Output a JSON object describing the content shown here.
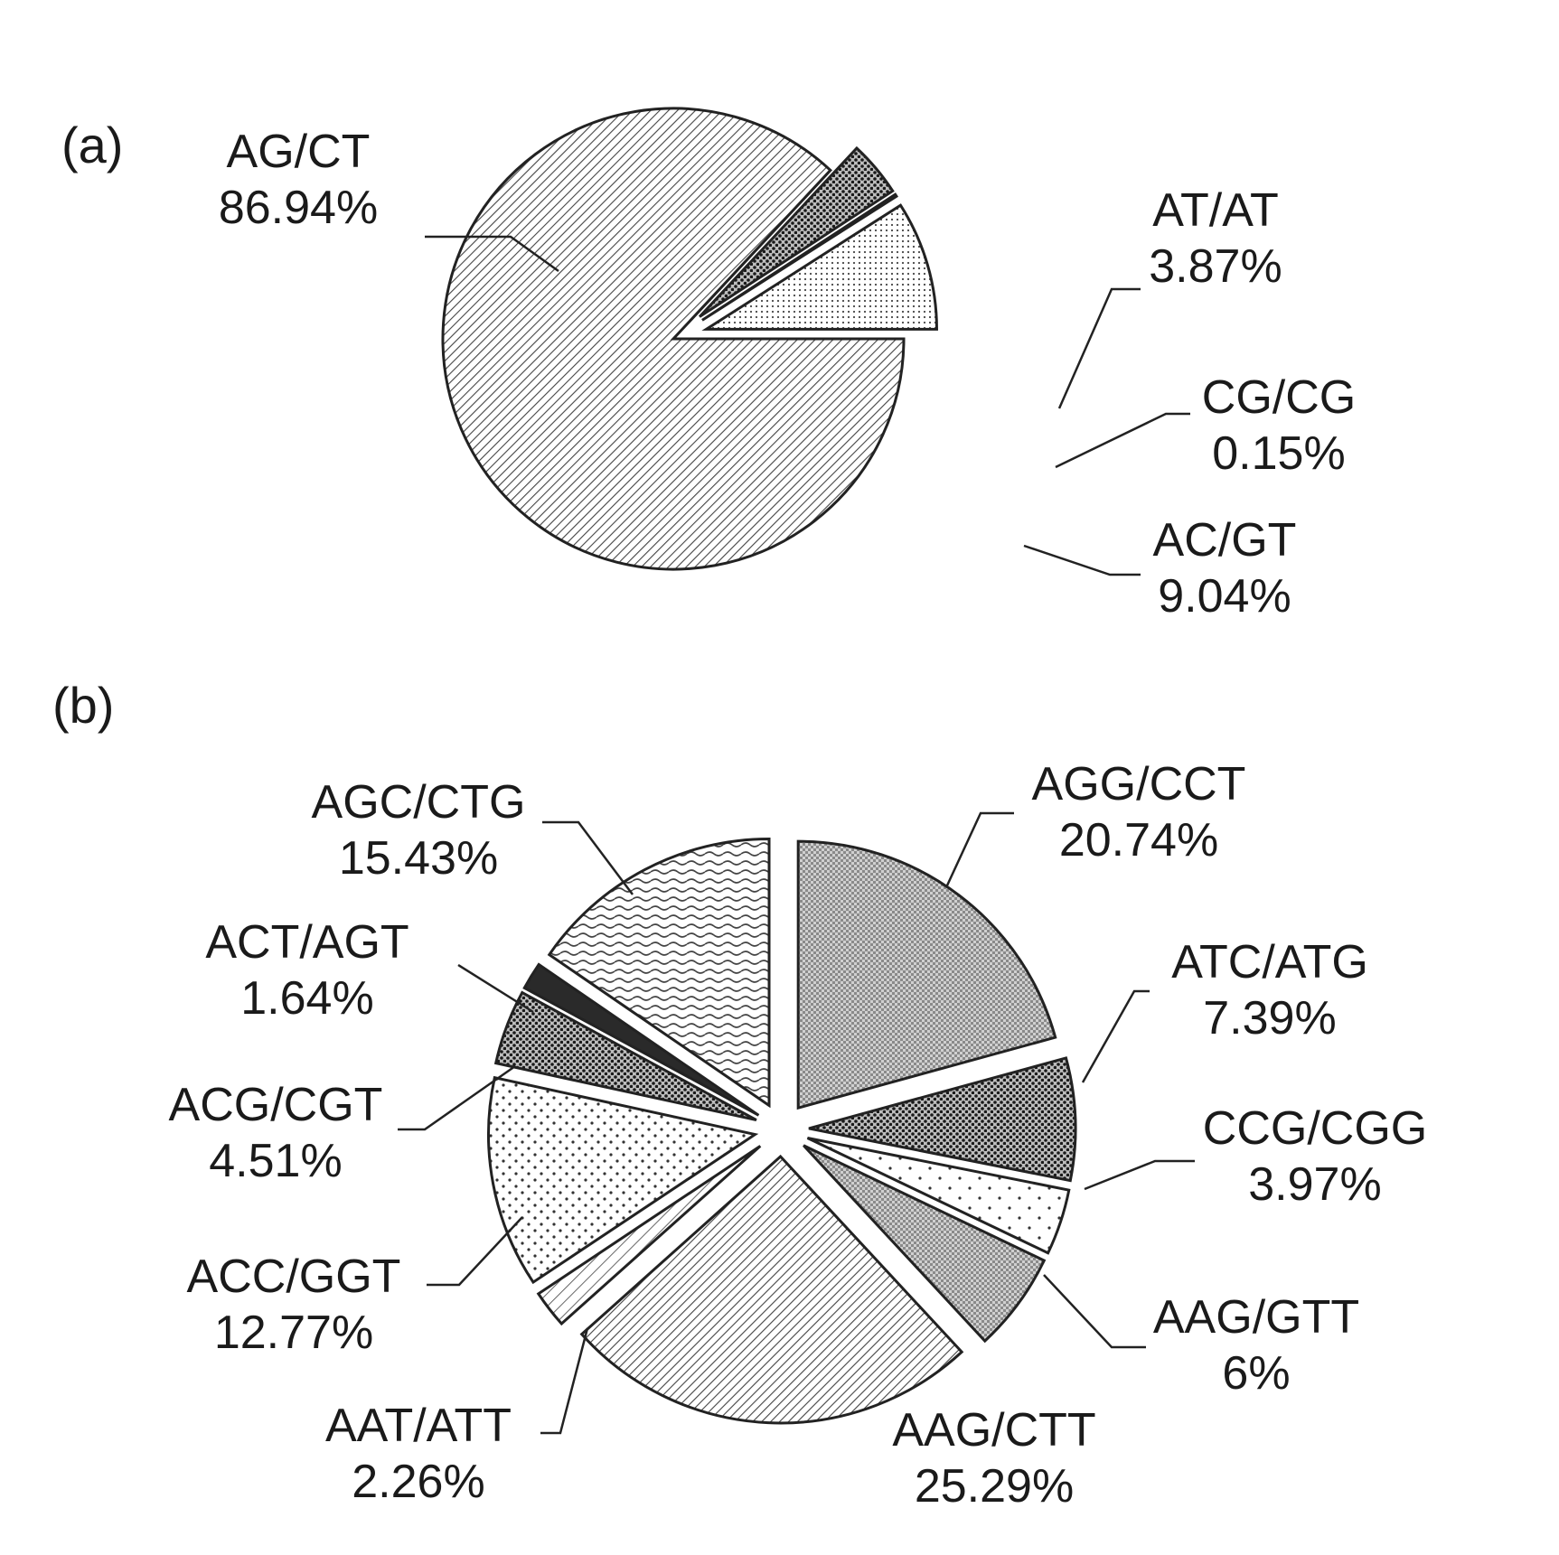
{
  "chart_data": [
    {
      "type": "pie",
      "panel_label": "(a)",
      "slices": [
        {
          "label": "AG/CT",
          "percent_text": "86.94%",
          "value": 86.94,
          "pattern": "hatch-dense"
        },
        {
          "label": "AT/AT",
          "percent_text": "3.87%",
          "value": 3.87,
          "pattern": "dots-dense"
        },
        {
          "label": "CG/CG",
          "percent_text": "0.15%",
          "value": 0.15,
          "pattern": "solid-dark"
        },
        {
          "label": "AC/GT",
          "percent_text": "9.04%",
          "value": 9.04,
          "pattern": "dots-light"
        }
      ]
    },
    {
      "type": "pie",
      "panel_label": "(b)",
      "slices": [
        {
          "label": "AGG/CCT",
          "percent_text": "20.74%",
          "value": 20.74,
          "pattern": "grid-dark"
        },
        {
          "label": "ATC/ATG",
          "percent_text": "7.39%",
          "value": 7.39,
          "pattern": "dots-dense"
        },
        {
          "label": "CCG/CGG",
          "percent_text": "3.97%",
          "value": 3.97,
          "pattern": "dots-sparse"
        },
        {
          "label": "AAG/GTT",
          "percent_text": "6%",
          "value": 6,
          "pattern": "grid-dark"
        },
        {
          "label": "AAG/CTT",
          "percent_text": "25.29%",
          "value": 25.29,
          "pattern": "hatch-dense"
        },
        {
          "label": "AAT/ATT",
          "percent_text": "2.26%",
          "value": 2.26,
          "pattern": "hatch-light"
        },
        {
          "label": "ACC/GGT",
          "percent_text": "12.77%",
          "value": 12.77,
          "pattern": "dots-medium"
        },
        {
          "label": "ACG/CGT",
          "percent_text": "4.51%",
          "value": 4.51,
          "pattern": "dots-dense"
        },
        {
          "label": "ACT/AGT",
          "percent_text": "1.64%",
          "value": 1.64,
          "pattern": "solid-dark"
        },
        {
          "label": "AGC/CTG",
          "percent_text": "15.43%",
          "value": 15.43,
          "pattern": "wavy"
        }
      ]
    }
  ]
}
